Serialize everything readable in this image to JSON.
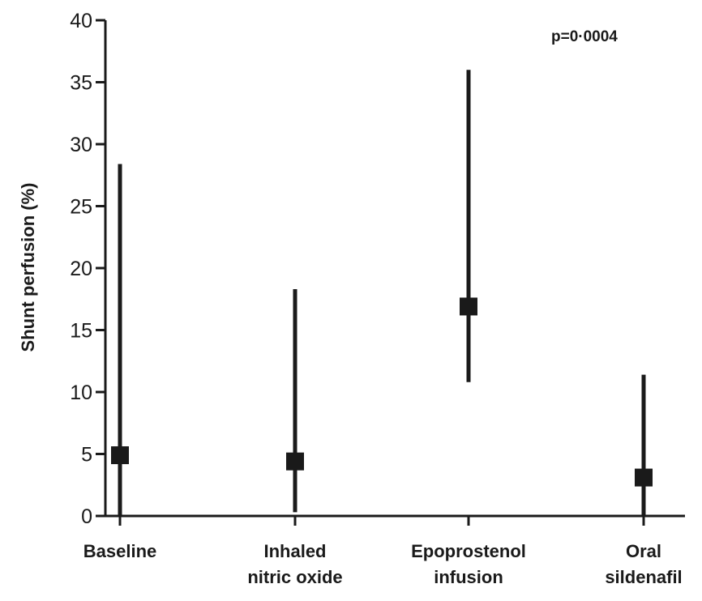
{
  "chart_data": {
    "type": "scatter",
    "title": "",
    "xlabel": "",
    "ylabel": "Shunt perfusion (%)",
    "ylim": [
      0,
      40
    ],
    "yticks": [
      0,
      5,
      10,
      15,
      20,
      25,
      30,
      35,
      40
    ],
    "categories": [
      [
        "Baseline"
      ],
      [
        "Inhaled",
        "nitric oxide"
      ],
      [
        "Epoprostenol",
        "infusion"
      ],
      [
        "Oral",
        "sildenafil"
      ]
    ],
    "series": [
      {
        "points": [
          {
            "median": 4.9,
            "low": 0.0,
            "high": 28.4
          },
          {
            "median": 4.4,
            "low": 0.3,
            "high": 18.3
          },
          {
            "median": 16.9,
            "low": 10.8,
            "high": 36.0
          },
          {
            "median": 3.1,
            "low": 0.1,
            "high": 11.4
          }
        ]
      }
    ],
    "annotations": [
      "p=0·0004"
    ],
    "grid": false,
    "legend": "none"
  }
}
